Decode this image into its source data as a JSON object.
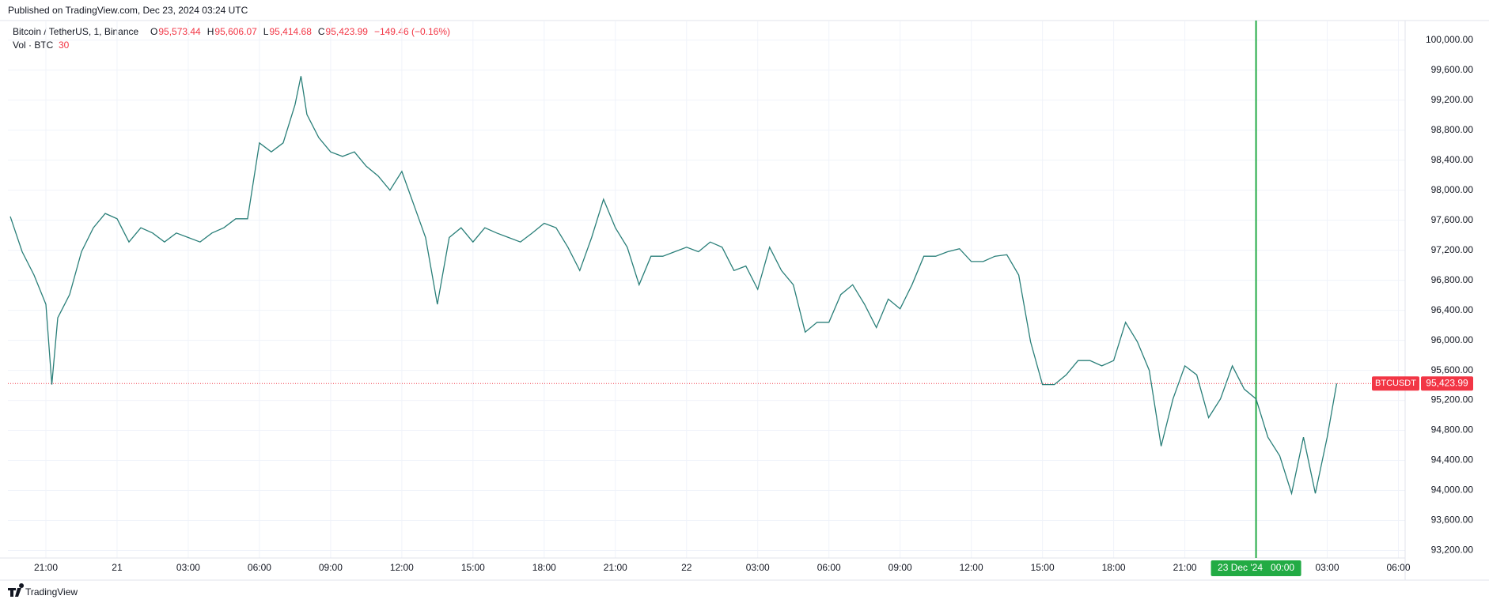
{
  "header": {
    "published": "Published on TradingView.com, Dec 23, 2024 03:24 UTC",
    "footer": "TradingView"
  },
  "chart_data": {
    "type": "line",
    "symbol": "Bitcoin / TetherUS, 1, Binance",
    "ohlc": [
      {
        "key": "O",
        "value": "95,573.44"
      },
      {
        "key": "H",
        "value": "95,606.07"
      },
      {
        "key": "L",
        "value": "95,414.68"
      },
      {
        "key": "C",
        "value": "95,423.99"
      }
    ],
    "change": "−149.46 (−0.16%)",
    "volume_label": "Vol · BTC",
    "volume_last": "30",
    "last_price": 95423.99,
    "last_price_label": "95,423.99",
    "last_price_tag": "BTCUSDT",
    "crosshair": {
      "value": 3060,
      "label": "23 Dec '24   00:00"
    },
    "color": "#2a7f79",
    "x": [
      -90,
      -60,
      -30,
      0,
      15,
      30,
      60,
      90,
      120,
      150,
      180,
      210,
      240,
      270,
      300,
      330,
      360,
      390,
      420,
      450,
      480,
      510,
      540,
      570,
      600,
      630,
      645,
      660,
      690,
      720,
      750,
      780,
      810,
      840,
      870,
      900,
      930,
      960,
      990,
      1020,
      1050,
      1080,
      1110,
      1140,
      1170,
      1200,
      1230,
      1260,
      1290,
      1320,
      1350,
      1380,
      1410,
      1440,
      1470,
      1500,
      1530,
      1560,
      1590,
      1620,
      1650,
      1680,
      1710,
      1740,
      1770,
      1800,
      1830,
      1860,
      1890,
      1920,
      1950,
      1980,
      2010,
      2040,
      2070,
      2100,
      2130,
      2160,
      2190,
      2220,
      2250,
      2280,
      2310,
      2340,
      2370,
      2400,
      2430,
      2460,
      2490,
      2520,
      2550,
      2580,
      2610,
      2640,
      2670,
      2700,
      2730,
      2760,
      2790,
      2820,
      2850,
      2880,
      2910,
      2940,
      2970,
      3000,
      3030,
      3060,
      3090,
      3120,
      3150,
      3180,
      3210,
      3240,
      3264
    ],
    "values": [
      97650,
      97180,
      96870,
      96480,
      95410,
      96300,
      96610,
      97180,
      97500,
      97690,
      97620,
      97310,
      97500,
      97430,
      97310,
      97430,
      97370,
      97310,
      97430,
      97500,
      97620,
      97620,
      98630,
      98510,
      98630,
      99140,
      99520,
      99010,
      98700,
      98510,
      98450,
      98510,
      98320,
      98190,
      98000,
      98250,
      97810,
      97370,
      96480,
      97370,
      97500,
      97310,
      97500,
      97430,
      97370,
      97310,
      97430,
      97560,
      97500,
      97240,
      96930,
      97370,
      97880,
      97500,
      97240,
      96740,
      97120,
      97120,
      97180,
      97240,
      97180,
      97310,
      97240,
      96930,
      96990,
      96680,
      97240,
      96930,
      96740,
      96110,
      96240,
      96240,
      96610,
      96740,
      96480,
      96170,
      96550,
      96420,
      96740,
      97120,
      97120,
      97180,
      97220,
      97050,
      97050,
      97120,
      97140,
      96870,
      95980,
      95410,
      95410,
      95540,
      95730,
      95730,
      95660,
      95730,
      96240,
      95980,
      95600,
      94590,
      95220,
      95660,
      95540,
      94970,
      95220,
      95660,
      95350,
      95220,
      94710,
      94460,
      93960,
      94710,
      93960,
      94710,
      95423.99
    ],
    "xlim": [
      -96,
      3437
    ],
    "ylim": [
      93100,
      100250
    ],
    "xticks": [
      {
        "value": 0,
        "label": "21:00"
      },
      {
        "value": 180,
        "label": "21"
      },
      {
        "value": 360,
        "label": "03:00"
      },
      {
        "value": 540,
        "label": "06:00"
      },
      {
        "value": 720,
        "label": "09:00"
      },
      {
        "value": 900,
        "label": "12:00"
      },
      {
        "value": 1080,
        "label": "15:00"
      },
      {
        "value": 1260,
        "label": "18:00"
      },
      {
        "value": 1440,
        "label": "21:00"
      },
      {
        "value": 1620,
        "label": "22"
      },
      {
        "value": 1800,
        "label": "03:00"
      },
      {
        "value": 1980,
        "label": "06:00"
      },
      {
        "value": 2160,
        "label": "09:00"
      },
      {
        "value": 2340,
        "label": "12:00"
      },
      {
        "value": 2520,
        "label": "15:00"
      },
      {
        "value": 2700,
        "label": "18:00"
      },
      {
        "value": 2880,
        "label": "21:00"
      },
      {
        "value": 3240,
        "label": "03:00"
      },
      {
        "value": 3420,
        "label": "06:00"
      }
    ],
    "yticks": [
      {
        "value": 93200,
        "label": "93,200.00"
      },
      {
        "value": 93600,
        "label": "93,600.00"
      },
      {
        "value": 94000,
        "label": "94,000.00"
      },
      {
        "value": 94400,
        "label": "94,400.00"
      },
      {
        "value": 94800,
        "label": "94,800.00"
      },
      {
        "value": 95200,
        "label": "95,200.00"
      },
      {
        "value": 95600,
        "label": "95,600.00"
      },
      {
        "value": 96000,
        "label": "96,000.00"
      },
      {
        "value": 96400,
        "label": "96,400.00"
      },
      {
        "value": 96800,
        "label": "96,800.00"
      },
      {
        "value": 97200,
        "label": "97,200.00"
      },
      {
        "value": 97600,
        "label": "97,600.00"
      },
      {
        "value": 98000,
        "label": "98,000.00"
      },
      {
        "value": 98400,
        "label": "98,400.00"
      },
      {
        "value": 98800,
        "label": "98,800.00"
      },
      {
        "value": 99200,
        "label": "99,200.00"
      },
      {
        "value": 99600,
        "label": "99,600.00"
      },
      {
        "value": 100000,
        "label": "100,000.00"
      }
    ],
    "grid": true
  }
}
